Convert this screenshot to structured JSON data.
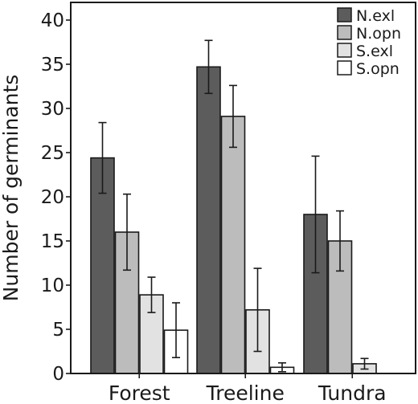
{
  "chart_data": {
    "type": "bar",
    "title": "",
    "xlabel": "",
    "ylabel": "Number of germinants",
    "ylim": [
      0,
      42
    ],
    "yticks": [
      0,
      5,
      10,
      15,
      20,
      25,
      30,
      35,
      40
    ],
    "grid": false,
    "legend_position": "top-right",
    "categories": [
      "Forest",
      "Treeline",
      "Tundra"
    ],
    "series": [
      {
        "name": "N.exl",
        "color": "#5c5c5c",
        "values": [
          24.4,
          34.7,
          18.0
        ],
        "error": [
          4.0,
          3.0,
          6.6
        ]
      },
      {
        "name": "N.opn",
        "color": "#bcbcbc",
        "values": [
          16.0,
          29.1,
          15.0
        ],
        "error": [
          4.3,
          3.5,
          3.4
        ]
      },
      {
        "name": "S.exl",
        "color": "#e2e2e2",
        "values": [
          8.9,
          7.2,
          1.1
        ],
        "error": [
          2.0,
          4.7,
          0.6
        ]
      },
      {
        "name": "S.opn",
        "color": "#ffffff",
        "values": [
          4.9,
          0.7,
          0.0
        ],
        "error": [
          3.1,
          0.5,
          0.0
        ]
      }
    ]
  }
}
